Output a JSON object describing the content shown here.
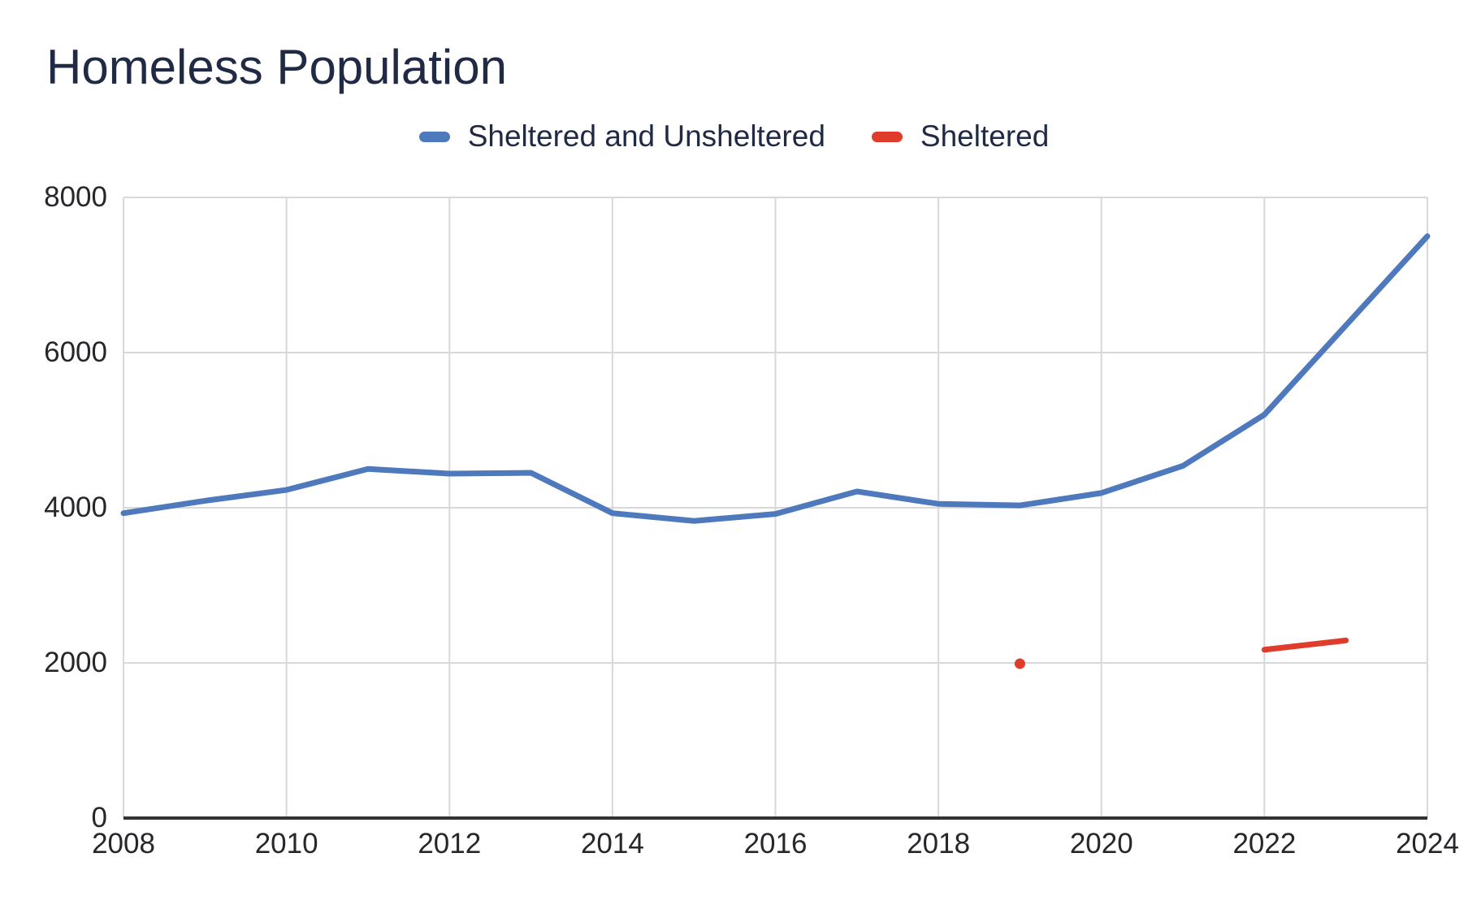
{
  "title": "Homeless Population",
  "colors": {
    "title_text": "#212a45",
    "tick_text": "#26262b",
    "grid": "#d8d8d8",
    "axis": "#333333",
    "series_blue": "#4e79bd",
    "series_red": "#df3c2c"
  },
  "chart_data": {
    "type": "line",
    "title": "Homeless Population",
    "xlabel": "",
    "ylabel": "",
    "xlim": [
      2008,
      2024
    ],
    "ylim": [
      0,
      8000
    ],
    "x_ticks": [
      2008,
      2010,
      2012,
      2014,
      2016,
      2018,
      2020,
      2022,
      2024
    ],
    "y_ticks": [
      0,
      2000,
      4000,
      6000,
      8000
    ],
    "grid": true,
    "legend_position": "top-center",
    "series": [
      {
        "name": "Sheltered and Unsheltered",
        "color": "#4e79bd",
        "line_width": 7,
        "segments": [
          [
            [
              2008,
              3930
            ],
            [
              2009,
              4090
            ],
            [
              2010,
              4230
            ],
            [
              2011,
              4500
            ],
            [
              2012,
              4440
            ],
            [
              2013,
              4450
            ],
            [
              2014,
              3930
            ],
            [
              2015,
              3830
            ],
            [
              2016,
              3920
            ],
            [
              2017,
              4210
            ],
            [
              2018,
              4050
            ],
            [
              2019,
              4030
            ],
            [
              2020,
              4190
            ],
            [
              2021,
              4540
            ],
            [
              2022,
              5200
            ],
            [
              2023,
              6350
            ],
            [
              2024,
              7500
            ]
          ]
        ]
      },
      {
        "name": "Sheltered",
        "color": "#df3c2c",
        "line_width": 7,
        "segments": [
          [
            [
              2019,
              1990
            ]
          ],
          [
            [
              2022,
              2170
            ],
            [
              2023,
              2290
            ]
          ]
        ]
      }
    ]
  }
}
